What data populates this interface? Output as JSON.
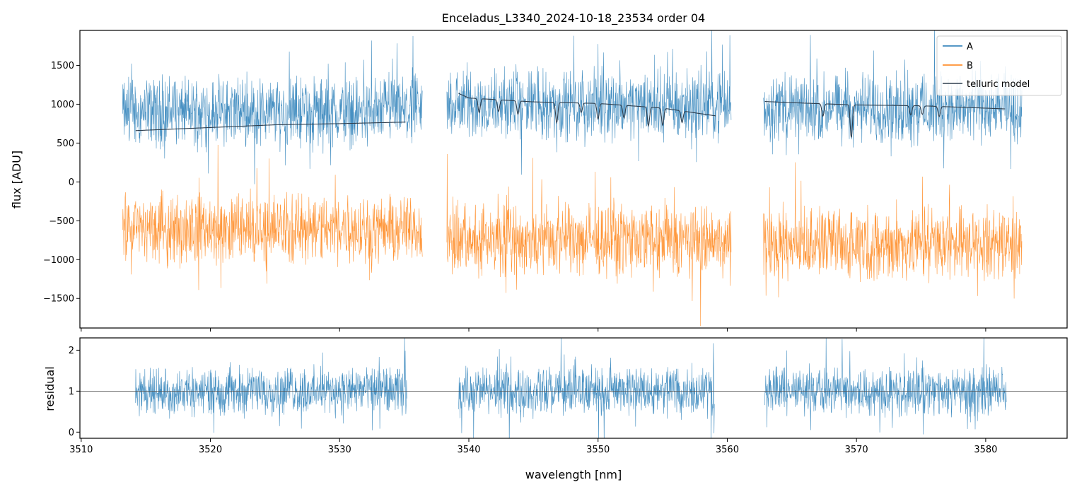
{
  "chart_data": [
    {
      "type": "line",
      "panel": "top",
      "title": "Enceladus_L3340_2024-10-18_23534  order 04",
      "xlabel": "",
      "ylabel": "flux [ADU]",
      "xlim": [
        3509.9,
        3586.3
      ],
      "ylim": [
        -1880,
        1950
      ],
      "y_ticks": [
        -1500,
        -1000,
        -500,
        0,
        500,
        1000,
        1500
      ],
      "y_tick_labels": [
        "−1500",
        "−1000",
        "−500",
        "0",
        "500",
        "1000",
        "1500"
      ],
      "x_ticks": [
        3510,
        3520,
        3530,
        3540,
        3550,
        3560,
        3570,
        3580
      ],
      "x_tick_labels_shown": false,
      "grid": false,
      "legend_position": "top-right",
      "segments": [
        [
          3513.2,
          3536.4
        ],
        [
          3538.3,
          3560.3
        ],
        [
          3562.8,
          3582.8
        ]
      ],
      "series": [
        {
          "name": "A",
          "color": "#1f77b4",
          "style": "noisy-spectrum",
          "mean_by_segment": [
            900,
            1000,
            950
          ],
          "noise_amplitude": 420
        },
        {
          "name": "B",
          "color": "#ff7f0e",
          "style": "noisy-spectrum",
          "mean_by_segment": [
            -600,
            -750,
            -800
          ],
          "noise_amplitude": 420
        },
        {
          "name": "telluric model",
          "color": "#2f3f4f",
          "style": "line",
          "segments": [
            {
              "x": [
                3514.2,
                3520,
                3525,
                3530,
                3535.1
              ],
              "y": [
                660,
                700,
                735,
                750,
                770
              ]
            },
            {
              "x": [
                3539.2,
                3540,
                3545,
                3550,
                3555,
                3559.1
              ],
              "y": [
                1140,
                1080,
                1030,
                1010,
                950,
                850
              ]
            },
            {
              "x": [
                3562.9,
                3565,
                3570,
                3575,
                3581.5
              ],
              "y": [
                1035,
                1020,
                990,
                980,
                940
              ]
            }
          ],
          "absorption_lines": [
            {
              "x": 3540.8,
              "depth": 180
            },
            {
              "x": 3542.3,
              "depth": 150
            },
            {
              "x": 3543.8,
              "depth": 170
            },
            {
              "x": 3546.8,
              "depth": 260
            },
            {
              "x": 3548.7,
              "depth": 120
            },
            {
              "x": 3550.0,
              "depth": 200
            },
            {
              "x": 3552.0,
              "depth": 160
            },
            {
              "x": 3553.9,
              "depth": 240
            },
            {
              "x": 3555.0,
              "depth": 220
            },
            {
              "x": 3556.5,
              "depth": 150
            },
            {
              "x": 3567.4,
              "depth": 160
            },
            {
              "x": 3569.6,
              "depth": 420
            },
            {
              "x": 3574.2,
              "depth": 120
            },
            {
              "x": 3575.1,
              "depth": 110
            },
            {
              "x": 3576.4,
              "depth": 130
            }
          ]
        }
      ]
    },
    {
      "type": "line",
      "panel": "bottom",
      "title": "",
      "xlabel": "wavelength [nm]",
      "ylabel": "residual",
      "xlim": [
        3509.9,
        3586.3
      ],
      "ylim": [
        -0.15,
        2.3
      ],
      "y_ticks": [
        0,
        1,
        2
      ],
      "y_tick_labels": [
        "0",
        "1",
        "2"
      ],
      "x_ticks": [
        3510,
        3520,
        3530,
        3540,
        3550,
        3560,
        3570,
        3580
      ],
      "x_tick_labels": [
        "3510",
        "3520",
        "3530",
        "3540",
        "3550",
        "3560",
        "3570",
        "3580"
      ],
      "grid": false,
      "reference_line": {
        "y": 1,
        "color": "#555555"
      },
      "segments": [
        [
          3514.2,
          3535.2
        ],
        [
          3539.2,
          3559.0
        ],
        [
          3562.9,
          3581.6
        ]
      ],
      "series": [
        {
          "name": "",
          "color": "#1f77b4",
          "style": "noisy-spectrum",
          "mean": 1.0,
          "noise_amplitude": 0.55
        }
      ]
    }
  ]
}
